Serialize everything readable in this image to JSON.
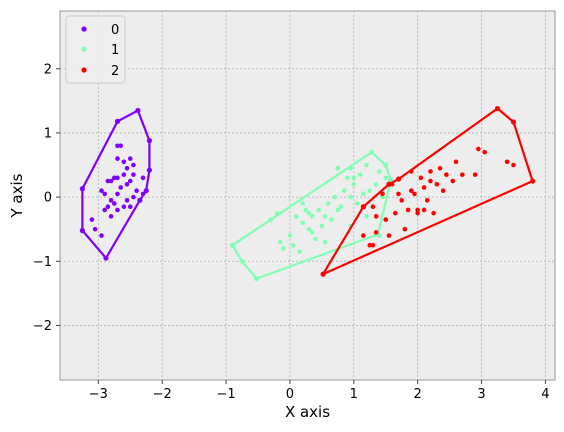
{
  "chart_data": {
    "type": "scatter",
    "title": "",
    "xlabel": "X axis",
    "ylabel": "Y axis",
    "xlim": [
      -3.6,
      4.15
    ],
    "ylim": [
      -2.85,
      2.9
    ],
    "xticks": [
      -3,
      -2,
      -1,
      0,
      1,
      2,
      3,
      4
    ],
    "yticks": [
      -2,
      -1,
      0,
      1,
      2
    ],
    "xtick_labels": [
      "−3",
      "−2",
      "−1",
      "0",
      "1",
      "2",
      "3",
      "4"
    ],
    "ytick_labels": [
      "−2",
      "−1",
      "0",
      "1",
      "2"
    ],
    "grid": true,
    "legend_position": "top-left",
    "series": [
      {
        "name": "0",
        "color": "#8000ff",
        "points": [
          [
            -2.7,
            0.8
          ],
          [
            -2.65,
            0.8
          ],
          [
            -2.7,
            0.6
          ],
          [
            -2.6,
            0.55
          ],
          [
            -2.55,
            0.45
          ],
          [
            -2.5,
            0.6
          ],
          [
            -2.45,
            0.5
          ],
          [
            -2.75,
            0.3
          ],
          [
            -2.7,
            0.3
          ],
          [
            -2.6,
            0.35
          ],
          [
            -2.85,
            0.25
          ],
          [
            -2.8,
            0.25
          ],
          [
            -2.65,
            0.15
          ],
          [
            -2.55,
            0.2
          ],
          [
            -2.4,
            0.1
          ],
          [
            -2.5,
            0.25
          ],
          [
            -2.45,
            0.35
          ],
          [
            -2.3,
            0.3
          ],
          [
            -2.7,
            0.05
          ],
          [
            -2.9,
            0.05
          ],
          [
            -2.95,
            0.1
          ],
          [
            -2.8,
            -0.05
          ],
          [
            -2.75,
            -0.1
          ],
          [
            -2.7,
            -0.2
          ],
          [
            -2.6,
            -0.15
          ],
          [
            -2.85,
            -0.15
          ],
          [
            -2.9,
            -0.2
          ],
          [
            -2.55,
            -0.05
          ],
          [
            -2.5,
            -0.15
          ],
          [
            -2.45,
            0.0
          ],
          [
            -3.1,
            -0.35
          ],
          [
            -3.05,
            -0.5
          ],
          [
            -2.95,
            -0.6
          ],
          [
            -2.8,
            -0.3
          ],
          [
            -2.35,
            -0.05
          ],
          [
            -2.3,
            0.05
          ]
        ],
        "hull": [
          [
            -3.25,
            0.13
          ],
          [
            -3.25,
            -0.52
          ],
          [
            -2.88,
            -0.95
          ],
          [
            -2.35,
            -0.05
          ],
          [
            -2.25,
            0.1
          ],
          [
            -2.2,
            0.42
          ],
          [
            -2.2,
            0.88
          ],
          [
            -2.38,
            1.35
          ],
          [
            -2.7,
            1.18
          ]
        ]
      },
      {
        "name": "1",
        "color": "#80ffb4",
        "points": [
          [
            -0.3,
            -0.35
          ],
          [
            -0.2,
            -0.25
          ],
          [
            -0.15,
            -0.7
          ],
          [
            0.0,
            -0.6
          ],
          [
            0.05,
            -0.75
          ],
          [
            0.1,
            -0.3
          ],
          [
            0.2,
            -0.4
          ],
          [
            0.25,
            -0.2
          ],
          [
            0.3,
            -0.5
          ],
          [
            0.35,
            -0.3
          ],
          [
            0.4,
            -0.65
          ],
          [
            0.45,
            -0.2
          ],
          [
            0.5,
            -0.45
          ],
          [
            0.55,
            -0.3
          ],
          [
            0.6,
            -0.1
          ],
          [
            0.65,
            -0.35
          ],
          [
            0.7,
            0.0
          ],
          [
            0.75,
            -0.2
          ],
          [
            0.8,
            -0.15
          ],
          [
            0.85,
            0.1
          ],
          [
            0.9,
            0.3
          ],
          [
            0.95,
            0.0
          ],
          [
            1.0,
            0.2
          ],
          [
            1.05,
            -0.1
          ],
          [
            1.1,
            0.35
          ],
          [
            1.15,
            0.05
          ],
          [
            1.2,
            0.5
          ],
          [
            1.25,
            0.1
          ],
          [
            1.3,
            -0.15
          ],
          [
            1.35,
            0.2
          ],
          [
            1.4,
            0.4
          ],
          [
            1.45,
            0.0
          ],
          [
            1.5,
            0.3
          ],
          [
            -0.1,
            -0.8
          ],
          [
            0.15,
            -0.85
          ],
          [
            0.35,
            -0.55
          ],
          [
            0.55,
            -0.7
          ],
          [
            0.95,
            -0.45
          ],
          [
            1.2,
            -0.3
          ],
          [
            1.4,
            -0.6
          ],
          [
            0.75,
            0.45
          ],
          [
            0.95,
            0.45
          ],
          [
            0.1,
            -0.3
          ],
          [
            0.2,
            -0.1
          ],
          [
            0.3,
            -0.25
          ],
          [
            1.0,
            0.3
          ]
        ],
        "hull": [
          [
            -0.9,
            -0.75
          ],
          [
            1.28,
            0.7
          ],
          [
            1.5,
            0.5
          ],
          [
            1.58,
            0.27
          ],
          [
            1.38,
            -0.58
          ],
          [
            -0.52,
            -1.27
          ],
          [
            -0.75,
            -1.0
          ]
        ]
      },
      {
        "name": "2",
        "color": "#ff0000",
        "points": [
          [
            1.3,
            -0.15
          ],
          [
            1.35,
            -0.3
          ],
          [
            1.25,
            -0.75
          ],
          [
            1.35,
            -0.55
          ],
          [
            1.5,
            -0.35
          ],
          [
            1.55,
            -0.6
          ],
          [
            1.65,
            -0.25
          ],
          [
            1.7,
            0.05
          ],
          [
            1.8,
            -0.5
          ],
          [
            1.85,
            -0.2
          ],
          [
            1.9,
            0.1
          ],
          [
            1.95,
            0.05
          ],
          [
            2.0,
            -0.2
          ],
          [
            2.05,
            0.3
          ],
          [
            2.1,
            0.15
          ],
          [
            2.15,
            -0.05
          ],
          [
            2.2,
            0.4
          ],
          [
            2.25,
            -0.25
          ],
          [
            2.3,
            0.2
          ],
          [
            2.35,
            0.45
          ],
          [
            2.4,
            0.1
          ],
          [
            2.45,
            0.35
          ],
          [
            2.55,
            0.25
          ],
          [
            2.6,
            0.55
          ],
          [
            2.7,
            0.35
          ],
          [
            2.9,
            0.35
          ],
          [
            2.95,
            0.75
          ],
          [
            3.05,
            0.7
          ],
          [
            3.4,
            0.55
          ],
          [
            3.5,
            0.5
          ],
          [
            1.9,
            0.4
          ],
          [
            2.0,
            -0.25
          ],
          [
            2.1,
            -0.2
          ],
          [
            1.45,
            0.05
          ],
          [
            1.75,
            -0.05
          ],
          [
            1.15,
            -0.6
          ],
          [
            2.2,
            0.25
          ],
          [
            1.6,
            0.2
          ],
          [
            1.3,
            -0.75
          ]
        ],
        "hull": [
          [
            0.52,
            -1.2
          ],
          [
            1.15,
            -0.15
          ],
          [
            1.55,
            0.2
          ],
          [
            1.7,
            0.28
          ],
          [
            3.25,
            1.38
          ],
          [
            3.5,
            1.17
          ],
          [
            3.8,
            0.25
          ]
        ]
      }
    ]
  }
}
